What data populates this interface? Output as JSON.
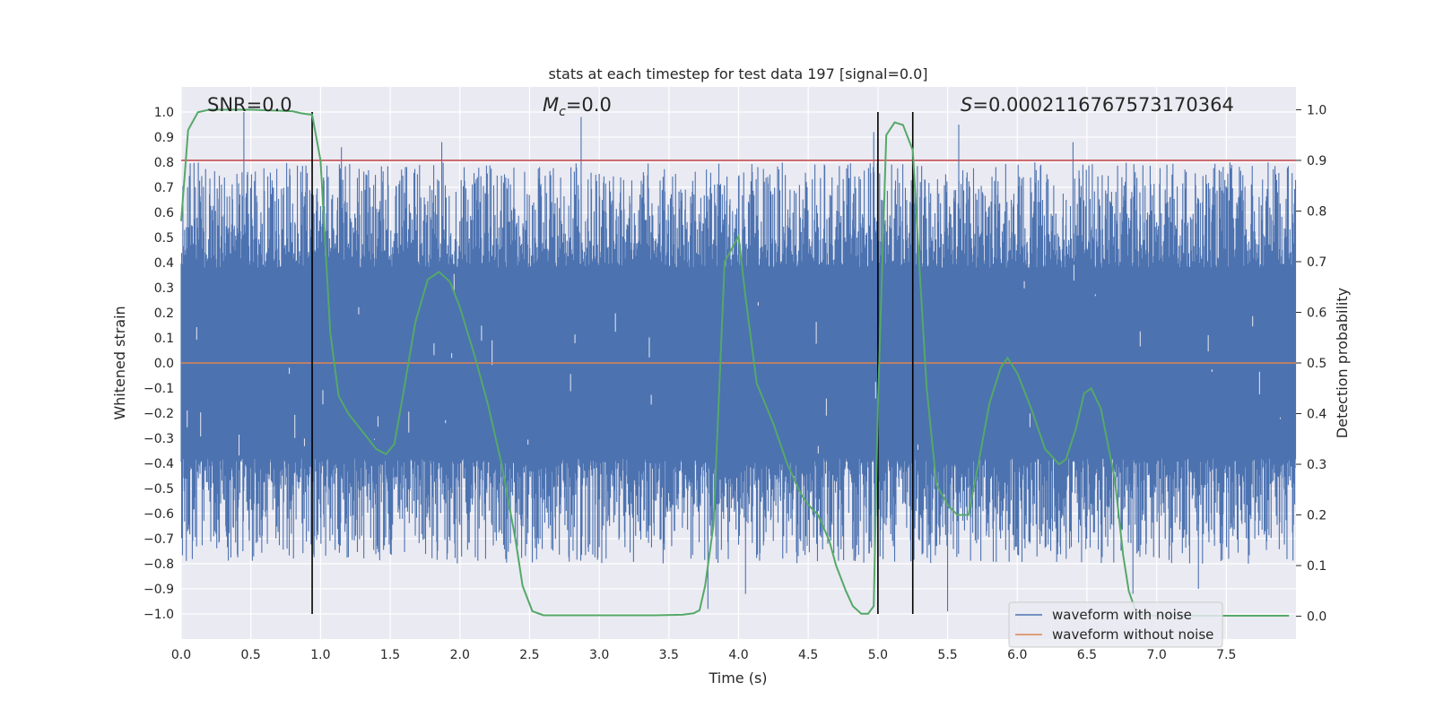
{
  "chart_data": {
    "type": "line",
    "title": "stats at each timestep for test data 197 [signal=0.0]",
    "xlabel": "Time (s)",
    "ylabel_left": "Whitened strain",
    "ylabel_right": "Detection probability",
    "xlim": [
      0.0,
      8.0
    ],
    "ylim_left": [
      -1.1,
      1.1
    ],
    "ylim_right": [
      -0.045,
      1.045
    ],
    "x_ticks": [
      "0.0",
      "0.5",
      "1.0",
      "1.5",
      "2.0",
      "2.5",
      "3.0",
      "3.5",
      "4.0",
      "4.5",
      "5.0",
      "5.5",
      "6.0",
      "6.5",
      "7.0",
      "7.5"
    ],
    "y_ticks_left": [
      "1.0",
      "0.9",
      "0.8",
      "0.7",
      "0.6",
      "0.5",
      "0.4",
      "0.3",
      "0.2",
      "0.1",
      "0.0",
      "−0.1",
      "−0.2",
      "−0.3",
      "−0.4",
      "−0.5",
      "−0.6",
      "−0.7",
      "−0.8",
      "−0.9",
      "−1.0"
    ],
    "y_ticks_right": [
      "1.0",
      "0.9",
      "0.8",
      "0.7",
      "0.6",
      "0.5",
      "0.4",
      "0.3",
      "0.2",
      "0.1",
      "0.0"
    ],
    "annotations": {
      "snr": "SNR=0.0",
      "mc_symbol": "M",
      "mc_sub": "c",
      "mc_value": "=0.0",
      "s_symbol": "S",
      "s_value": "=0.0002116767573170364"
    },
    "threshold": 0.9,
    "threshold_color": "#c44e52",
    "vertical_lines": [
      0.94,
      5.0,
      5.25
    ],
    "legend": [
      {
        "label": "waveform with noise",
        "color": "#4c72b0"
      },
      {
        "label": "waveform without noise",
        "color": "#dd8452"
      }
    ],
    "series": [
      {
        "name": "waveform with noise",
        "color": "#4c72b0",
        "axis": "left",
        "noise_band": [
          -0.38,
          0.38
        ],
        "notable_spikes": [
          {
            "x": 0.45,
            "y": 1.0
          },
          {
            "x": 2.87,
            "y": 0.98
          },
          {
            "x": 4.97,
            "y": 0.92
          },
          {
            "x": 5.58,
            "y": 0.95
          },
          {
            "x": 6.4,
            "y": 0.88
          },
          {
            "x": 1.87,
            "y": 0.88
          },
          {
            "x": 1.15,
            "y": 0.86
          },
          {
            "x": 3.78,
            "y": -0.98
          },
          {
            "x": 5.5,
            "y": -0.99
          },
          {
            "x": 4.05,
            "y": -0.92
          },
          {
            "x": 6.83,
            "y": -0.92
          },
          {
            "x": 7.3,
            "y": -0.9
          }
        ]
      },
      {
        "name": "waveform without noise",
        "color": "#dd8452",
        "axis": "left",
        "x": [
          0.0,
          8.0
        ],
        "y": [
          0.0,
          0.0
        ]
      },
      {
        "name": "detection probability",
        "color": "#55a868",
        "axis": "right",
        "x": [
          0.0,
          0.05,
          0.12,
          0.2,
          0.3,
          0.4,
          0.5,
          0.6,
          0.7,
          0.8,
          0.86,
          0.94,
          1.0,
          1.07,
          1.13,
          1.2,
          1.3,
          1.4,
          1.47,
          1.53,
          1.6,
          1.68,
          1.77,
          1.85,
          1.93,
          2.0,
          2.1,
          2.2,
          2.3,
          2.4,
          2.45,
          2.52,
          2.6,
          2.8,
          3.0,
          3.2,
          3.4,
          3.6,
          3.68,
          3.72,
          3.76,
          3.82,
          3.9,
          3.95,
          4.0,
          4.05,
          4.13,
          4.25,
          4.35,
          4.45,
          4.5,
          4.57,
          4.65,
          4.7,
          4.77,
          4.82,
          4.88,
          4.93,
          4.97,
          5.0,
          5.06,
          5.12,
          5.18,
          5.25,
          5.3,
          5.35,
          5.42,
          5.5,
          5.57,
          5.65,
          5.72,
          5.8,
          5.88,
          5.93,
          6.0,
          6.1,
          6.2,
          6.3,
          6.35,
          6.42,
          6.48,
          6.53,
          6.6,
          6.7,
          6.76,
          6.8,
          6.85,
          6.9,
          7.0,
          7.2,
          7.4,
          7.6,
          7.8,
          7.95
        ],
        "y": [
          0.78,
          0.96,
          0.995,
          1.0,
          1.0,
          1.0,
          1.0,
          0.999,
          0.998,
          0.997,
          0.993,
          0.99,
          0.9,
          0.56,
          0.435,
          0.4,
          0.365,
          0.33,
          0.32,
          0.34,
          0.45,
          0.58,
          0.665,
          0.68,
          0.66,
          0.61,
          0.52,
          0.42,
          0.3,
          0.15,
          0.06,
          0.01,
          0.002,
          0.002,
          0.002,
          0.002,
          0.002,
          0.003,
          0.006,
          0.012,
          0.06,
          0.18,
          0.7,
          0.725,
          0.75,
          0.63,
          0.46,
          0.38,
          0.3,
          0.24,
          0.22,
          0.2,
          0.15,
          0.1,
          0.05,
          0.02,
          0.005,
          0.005,
          0.02,
          0.42,
          0.95,
          0.975,
          0.97,
          0.92,
          0.68,
          0.45,
          0.26,
          0.22,
          0.2,
          0.2,
          0.3,
          0.42,
          0.49,
          0.51,
          0.48,
          0.41,
          0.33,
          0.3,
          0.31,
          0.37,
          0.44,
          0.45,
          0.41,
          0.27,
          0.12,
          0.05,
          0.01,
          0.002,
          0.001,
          0.001,
          0.001,
          0.001,
          0.001,
          0.001
        ]
      }
    ]
  }
}
